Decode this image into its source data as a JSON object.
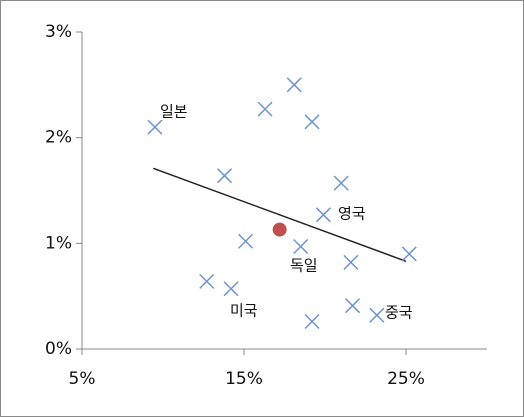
{
  "chart_data": {
    "type": "scatter",
    "xlim": [
      5,
      30
    ],
    "xticks": [
      {
        "value": 5,
        "label": "5%"
      },
      {
        "value": 15,
        "label": "15%"
      },
      {
        "value": 25,
        "label": "25%"
      }
    ],
    "ylim": [
      0,
      3
    ],
    "yticks": [
      {
        "value": 0,
        "label": "0%"
      },
      {
        "value": 1,
        "label": "1%"
      },
      {
        "value": 2,
        "label": "2%"
      },
      {
        "value": 3,
        "label": "3%"
      }
    ],
    "grid": false,
    "series": [
      {
        "color": "#6f93cf",
        "marker": "x",
        "x": [
          9.5,
          13.8,
          16.3,
          18.1,
          19.2,
          21.0,
          19.9,
          18.5,
          15.1,
          21.6,
          25.2,
          12.7,
          14.2,
          19.2,
          21.7,
          23.2
        ],
        "values": [
          2.1,
          1.64,
          2.27,
          2.5,
          2.15,
          1.57,
          1.27,
          0.97,
          1.02,
          0.82,
          0.9,
          0.64,
          0.57,
          0.26,
          0.41,
          0.32
        ]
      },
      {
        "color": "#c0504d",
        "marker": "circle",
        "x": [
          17.2
        ],
        "values": [
          1.13
        ]
      }
    ],
    "trend": {
      "color": "#222222",
      "x": [
        9.4,
        25.0
      ],
      "values": [
        1.71,
        0.83
      ]
    },
    "annotations": [
      "일본",
      "영국",
      "독일",
      "미국",
      "중국"
    ]
  }
}
